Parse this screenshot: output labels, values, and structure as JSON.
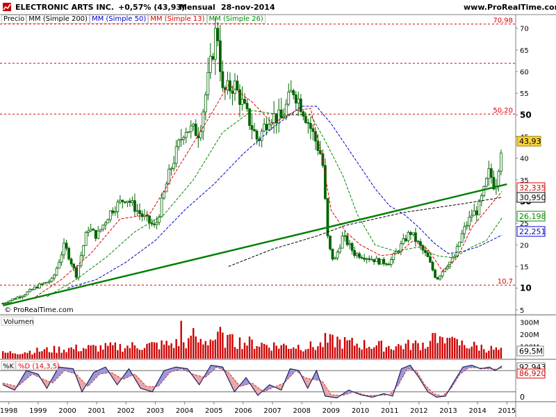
{
  "header": {
    "symbol": "ELECTRONIC ARTS INC.",
    "change": "+0,57% (43,93)",
    "period": "Mensual",
    "date": "28-nov-2014",
    "site": "www.ProRealTime.com"
  },
  "legend": {
    "price": "Precio",
    "ma200": "MM (Simple 200)",
    "ma50": "MM (Simple 50)",
    "ma13": "MM (Simple 13)",
    "ma26": "MM (Simple 26)"
  },
  "watermark": "© ProRealTime.com",
  "panels": {
    "volume_label": "Volumen",
    "stoch_k_label": "%K",
    "stoch_d_label": "%D (14,3,5)"
  },
  "colors": {
    "price": "#006400",
    "ma200": "#000000",
    "ma50": "#0000cc",
    "ma13": "#dd0000",
    "ma26": "#008800",
    "trend": "#008000",
    "volume": "#cc0000",
    "stoch_k": "#202060",
    "hline": "#dd0000",
    "price_box": "#f6d23c"
  },
  "chart_data": [
    {
      "type": "candlestick",
      "title": "ELECTRONIC ARTS INC.",
      "x_axis_ticks": [
        "1998",
        "1999",
        "2000",
        "2001",
        "2002",
        "2003",
        "2004",
        "2005",
        "2006",
        "2007",
        "2008",
        "2009",
        "2010",
        "2011",
        "2012",
        "2013",
        "2014",
        "2015"
      ],
      "y_axis_ticks": [
        5,
        10,
        15,
        20,
        25,
        30,
        35,
        40,
        45,
        50,
        55,
        60,
        65,
        70
      ],
      "ylim": [
        4,
        73
      ],
      "horizontal_levels": [
        {
          "label": "70,98",
          "value": 70.98
        },
        {
          "label": "",
          "value": 61.9
        },
        {
          "label": "50,20",
          "value": 50.2
        },
        {
          "label": "10,7",
          "value": 10.7
        }
      ],
      "last_price": "43,93",
      "ma_labels": [
        {
          "name": "MM (Simple 13)",
          "label": "32,335",
          "value": 32.335
        },
        {
          "name": "MM (Simple 200)",
          "label": "30,950",
          "value": 30.95
        },
        {
          "name": "MM (Simple 26)",
          "label": "26,198",
          "value": 26.198
        },
        {
          "name": "MM (Simple 50)",
          "label": "22,251",
          "value": 22.251
        }
      ],
      "trendline": [
        {
          "x": 1997.8,
          "y": 6.0
        },
        {
          "x": 2015.0,
          "y": 34.0
        }
      ],
      "close_path": [
        {
          "x": 1997.8,
          "y": 6.5
        },
        {
          "x": 1998.5,
          "y": 8.5
        },
        {
          "x": 1999.0,
          "y": 10.5
        },
        {
          "x": 1999.5,
          "y": 12.0
        },
        {
          "x": 1999.9,
          "y": 20.0
        },
        {
          "x": 2000.3,
          "y": 13.0
        },
        {
          "x": 2000.7,
          "y": 24.0
        },
        {
          "x": 2001.0,
          "y": 22.0
        },
        {
          "x": 2001.5,
          "y": 28.0
        },
        {
          "x": 2002.0,
          "y": 31.0
        },
        {
          "x": 2002.5,
          "y": 27.0
        },
        {
          "x": 2003.0,
          "y": 24.0
        },
        {
          "x": 2003.5,
          "y": 37.0
        },
        {
          "x": 2004.0,
          "y": 47.0
        },
        {
          "x": 2004.5,
          "y": 46.0
        },
        {
          "x": 2004.9,
          "y": 62.0
        },
        {
          "x": 2005.1,
          "y": 71.0
        },
        {
          "x": 2005.3,
          "y": 55.0
        },
        {
          "x": 2005.7,
          "y": 57.0
        },
        {
          "x": 2006.0,
          "y": 52.0
        },
        {
          "x": 2006.5,
          "y": 44.0
        },
        {
          "x": 2006.9,
          "y": 50.0
        },
        {
          "x": 2007.3,
          "y": 49.0
        },
        {
          "x": 2007.7,
          "y": 56.0
        },
        {
          "x": 2008.0,
          "y": 52.0
        },
        {
          "x": 2008.3,
          "y": 47.0
        },
        {
          "x": 2008.7,
          "y": 40.0
        },
        {
          "x": 2008.9,
          "y": 20.0
        },
        {
          "x": 2009.1,
          "y": 16.0
        },
        {
          "x": 2009.4,
          "y": 22.0
        },
        {
          "x": 2009.8,
          "y": 18.0
        },
        {
          "x": 2010.3,
          "y": 17.0
        },
        {
          "x": 2010.7,
          "y": 16.0
        },
        {
          "x": 2011.0,
          "y": 16.0
        },
        {
          "x": 2011.4,
          "y": 20.0
        },
        {
          "x": 2011.7,
          "y": 23.0
        },
        {
          "x": 2012.0,
          "y": 20.0
        },
        {
          "x": 2012.3,
          "y": 17.0
        },
        {
          "x": 2012.6,
          "y": 12.0
        },
        {
          "x": 2012.9,
          "y": 15.0
        },
        {
          "x": 2013.2,
          "y": 17.0
        },
        {
          "x": 2013.5,
          "y": 23.0
        },
        {
          "x": 2013.8,
          "y": 27.0
        },
        {
          "x": 2014.0,
          "y": 28.0
        },
        {
          "x": 2014.2,
          "y": 32.0
        },
        {
          "x": 2014.4,
          "y": 37.0
        },
        {
          "x": 2014.6,
          "y": 33.0
        },
        {
          "x": 2014.83,
          "y": 43.93
        }
      ],
      "ma13": [
        {
          "x": 1998.8,
          "y": 7.5
        },
        {
          "x": 1999.8,
          "y": 12.0
        },
        {
          "x": 2000.8,
          "y": 18.0
        },
        {
          "x": 2001.8,
          "y": 26.0
        },
        {
          "x": 2002.8,
          "y": 27.0
        },
        {
          "x": 2003.8,
          "y": 38.0
        },
        {
          "x": 2004.8,
          "y": 49.0
        },
        {
          "x": 2005.5,
          "y": 57.0
        },
        {
          "x": 2006.3,
          "y": 53.0
        },
        {
          "x": 2007.0,
          "y": 48.0
        },
        {
          "x": 2007.8,
          "y": 51.0
        },
        {
          "x": 2008.3,
          "y": 51.5
        },
        {
          "x": 2008.7,
          "y": 40.0
        },
        {
          "x": 2009.0,
          "y": 28.0
        },
        {
          "x": 2009.5,
          "y": 23.0
        },
        {
          "x": 2010.0,
          "y": 20.0
        },
        {
          "x": 2010.7,
          "y": 17.5
        },
        {
          "x": 2011.3,
          "y": 18.0
        },
        {
          "x": 2011.8,
          "y": 21.0
        },
        {
          "x": 2012.3,
          "y": 19.0
        },
        {
          "x": 2012.8,
          "y": 14.0
        },
        {
          "x": 2013.3,
          "y": 17.0
        },
        {
          "x": 2013.8,
          "y": 24.0
        },
        {
          "x": 2014.3,
          "y": 28.0
        },
        {
          "x": 2014.83,
          "y": 32.335
        }
      ],
      "ma26": [
        {
          "x": 1999.3,
          "y": 8.0
        },
        {
          "x": 2000.3,
          "y": 12.0
        },
        {
          "x": 2001.3,
          "y": 17.0
        },
        {
          "x": 2002.3,
          "y": 23.0
        },
        {
          "x": 2003.3,
          "y": 27.0
        },
        {
          "x": 2004.3,
          "y": 35.0
        },
        {
          "x": 2005.3,
          "y": 46.0
        },
        {
          "x": 2006.3,
          "y": 51.0
        },
        {
          "x": 2007.3,
          "y": 50.0
        },
        {
          "x": 2008.3,
          "y": 50.0
        },
        {
          "x": 2008.8,
          "y": 44.0
        },
        {
          "x": 2009.4,
          "y": 36.0
        },
        {
          "x": 2009.9,
          "y": 27.0
        },
        {
          "x": 2010.5,
          "y": 20.0
        },
        {
          "x": 2011.2,
          "y": 18.5
        },
        {
          "x": 2012.0,
          "y": 19.5
        },
        {
          "x": 2012.6,
          "y": 17.5
        },
        {
          "x": 2013.2,
          "y": 17.0
        },
        {
          "x": 2013.8,
          "y": 19.5
        },
        {
          "x": 2014.3,
          "y": 21.0
        },
        {
          "x": 2014.83,
          "y": 26.198
        }
      ],
      "ma50": [
        {
          "x": 2000.0,
          "y": 10.0
        },
        {
          "x": 2001.0,
          "y": 12.0
        },
        {
          "x": 2002.0,
          "y": 16.0
        },
        {
          "x": 2003.0,
          "y": 21.0
        },
        {
          "x": 2004.0,
          "y": 28.0
        },
        {
          "x": 2005.0,
          "y": 34.0
        },
        {
          "x": 2006.0,
          "y": 41.0
        },
        {
          "x": 2007.0,
          "y": 47.0
        },
        {
          "x": 2008.0,
          "y": 52.0
        },
        {
          "x": 2008.5,
          "y": 52.0
        },
        {
          "x": 2009.0,
          "y": 48.0
        },
        {
          "x": 2009.5,
          "y": 43.0
        },
        {
          "x": 2010.0,
          "y": 38.0
        },
        {
          "x": 2010.5,
          "y": 33.0
        },
        {
          "x": 2011.0,
          "y": 29.0
        },
        {
          "x": 2011.5,
          "y": 27.0
        },
        {
          "x": 2012.0,
          "y": 24.0
        },
        {
          "x": 2012.5,
          "y": 20.5
        },
        {
          "x": 2013.0,
          "y": 18.0
        },
        {
          "x": 2013.5,
          "y": 18.5
        },
        {
          "x": 2014.0,
          "y": 19.5
        },
        {
          "x": 2014.83,
          "y": 22.251
        }
      ],
      "ma200": [
        {
          "x": 2005.5,
          "y": 15.0
        },
        {
          "x": 2007.0,
          "y": 19.0
        },
        {
          "x": 2008.5,
          "y": 22.0
        },
        {
          "x": 2009.5,
          "y": 24.5
        },
        {
          "x": 2010.5,
          "y": 26.0
        },
        {
          "x": 2011.5,
          "y": 27.5
        },
        {
          "x": 2012.5,
          "y": 28.5
        },
        {
          "x": 2013.5,
          "y": 29.5
        },
        {
          "x": 2014.83,
          "y": 30.95
        }
      ]
    },
    {
      "type": "bar",
      "title": "Volumen",
      "y_axis_ticks": [
        "300M",
        "200M",
        "100M"
      ],
      "last_value": "69,5M",
      "x_range": [
        1997.8,
        2014.83
      ],
      "profile": [
        {
          "x": 1997.8,
          "y": 50
        },
        {
          "x": 2000.0,
          "y": 90
        },
        {
          "x": 2002.0,
          "y": 110
        },
        {
          "x": 2003.5,
          "y": 130
        },
        {
          "x": 2004.5,
          "y": 160
        },
        {
          "x": 2005.0,
          "y": 180
        },
        {
          "x": 2007.0,
          "y": 120
        },
        {
          "x": 2008.5,
          "y": 110
        },
        {
          "x": 2009.0,
          "y": 160
        },
        {
          "x": 2010.0,
          "y": 130
        },
        {
          "x": 2011.0,
          "y": 110
        },
        {
          "x": 2012.0,
          "y": 130
        },
        {
          "x": 2013.0,
          "y": 150
        },
        {
          "x": 2014.0,
          "y": 110
        },
        {
          "x": 2014.83,
          "y": 70
        }
      ],
      "spikes": [
        {
          "x": 2003.9,
          "y": 310
        },
        {
          "x": 2004.3,
          "y": 250
        },
        {
          "x": 2005.2,
          "y": 260
        },
        {
          "x": 2005.6,
          "y": 200
        },
        {
          "x": 2008.8,
          "y": 210
        },
        {
          "x": 2009.2,
          "y": 180
        },
        {
          "x": 2012.5,
          "y": 210
        },
        {
          "x": 2013.0,
          "y": 170
        }
      ]
    },
    {
      "type": "line",
      "title": "%K %D (14,3,5)",
      "y_axis_ticks": [
        0
      ],
      "ylim": [
        0,
        100
      ],
      "last_k": "92,943",
      "last_d": "86,920",
      "k_points": [
        {
          "x": 1997.8,
          "y": 40
        },
        {
          "x": 1998.2,
          "y": 25
        },
        {
          "x": 1998.6,
          "y": 80
        },
        {
          "x": 1999.0,
          "y": 70
        },
        {
          "x": 1999.3,
          "y": 30
        },
        {
          "x": 1999.7,
          "y": 90
        },
        {
          "x": 2000.2,
          "y": 85
        },
        {
          "x": 2000.5,
          "y": 20
        },
        {
          "x": 2000.9,
          "y": 75
        },
        {
          "x": 2001.3,
          "y": 90
        },
        {
          "x": 2001.7,
          "y": 40
        },
        {
          "x": 2002.1,
          "y": 85
        },
        {
          "x": 2002.5,
          "y": 30
        },
        {
          "x": 2002.9,
          "y": 20
        },
        {
          "x": 2003.3,
          "y": 80
        },
        {
          "x": 2003.7,
          "y": 90
        },
        {
          "x": 2004.1,
          "y": 85
        },
        {
          "x": 2004.5,
          "y": 40
        },
        {
          "x": 2004.9,
          "y": 95
        },
        {
          "x": 2005.3,
          "y": 90
        },
        {
          "x": 2005.7,
          "y": 20
        },
        {
          "x": 2006.1,
          "y": 60
        },
        {
          "x": 2006.5,
          "y": 10
        },
        {
          "x": 2006.9,
          "y": 40
        },
        {
          "x": 2007.3,
          "y": 25
        },
        {
          "x": 2007.6,
          "y": 85
        },
        {
          "x": 2007.9,
          "y": 80
        },
        {
          "x": 2008.2,
          "y": 30
        },
        {
          "x": 2008.5,
          "y": 80
        },
        {
          "x": 2008.8,
          "y": 8
        },
        {
          "x": 2009.2,
          "y": 3
        },
        {
          "x": 2009.6,
          "y": 25
        },
        {
          "x": 2010.0,
          "y": 12
        },
        {
          "x": 2010.4,
          "y": 5
        },
        {
          "x": 2010.8,
          "y": 15
        },
        {
          "x": 2011.1,
          "y": 8
        },
        {
          "x": 2011.4,
          "y": 85
        },
        {
          "x": 2011.7,
          "y": 95
        },
        {
          "x": 2012.0,
          "y": 60
        },
        {
          "x": 2012.3,
          "y": 20
        },
        {
          "x": 2012.6,
          "y": 5
        },
        {
          "x": 2012.9,
          "y": 8
        },
        {
          "x": 2013.2,
          "y": 50
        },
        {
          "x": 2013.5,
          "y": 90
        },
        {
          "x": 2013.8,
          "y": 95
        },
        {
          "x": 2014.1,
          "y": 85
        },
        {
          "x": 2014.4,
          "y": 90
        },
        {
          "x": 2014.6,
          "y": 80
        },
        {
          "x": 2014.83,
          "y": 92.9
        }
      ],
      "d_points": [
        {
          "x": 1997.8,
          "y": 45
        },
        {
          "x": 1998.3,
          "y": 35
        },
        {
          "x": 1998.8,
          "y": 70
        },
        {
          "x": 1999.2,
          "y": 55
        },
        {
          "x": 1999.5,
          "y": 45
        },
        {
          "x": 1999.9,
          "y": 80
        },
        {
          "x": 2000.3,
          "y": 70
        },
        {
          "x": 2000.7,
          "y": 35
        },
        {
          "x": 2001.1,
          "y": 70
        },
        {
          "x": 2001.5,
          "y": 75
        },
        {
          "x": 2001.9,
          "y": 55
        },
        {
          "x": 2002.3,
          "y": 70
        },
        {
          "x": 2002.7,
          "y": 35
        },
        {
          "x": 2003.1,
          "y": 35
        },
        {
          "x": 2003.5,
          "y": 75
        },
        {
          "x": 2003.9,
          "y": 85
        },
        {
          "x": 2004.3,
          "y": 70
        },
        {
          "x": 2004.7,
          "y": 60
        },
        {
          "x": 2005.1,
          "y": 90
        },
        {
          "x": 2005.5,
          "y": 75
        },
        {
          "x": 2005.9,
          "y": 35
        },
        {
          "x": 2006.3,
          "y": 45
        },
        {
          "x": 2006.7,
          "y": 20
        },
        {
          "x": 2007.1,
          "y": 35
        },
        {
          "x": 2007.4,
          "y": 45
        },
        {
          "x": 2007.8,
          "y": 80
        },
        {
          "x": 2008.1,
          "y": 60
        },
        {
          "x": 2008.4,
          "y": 55
        },
        {
          "x": 2008.7,
          "y": 50
        },
        {
          "x": 2009.0,
          "y": 12
        },
        {
          "x": 2009.4,
          "y": 10
        },
        {
          "x": 2009.8,
          "y": 20
        },
        {
          "x": 2010.2,
          "y": 10
        },
        {
          "x": 2010.6,
          "y": 10
        },
        {
          "x": 2011.0,
          "y": 12
        },
        {
          "x": 2011.3,
          "y": 40
        },
        {
          "x": 2011.6,
          "y": 85
        },
        {
          "x": 2011.9,
          "y": 80
        },
        {
          "x": 2012.2,
          "y": 40
        },
        {
          "x": 2012.5,
          "y": 15
        },
        {
          "x": 2012.8,
          "y": 8
        },
        {
          "x": 2013.1,
          "y": 30
        },
        {
          "x": 2013.4,
          "y": 70
        },
        {
          "x": 2013.7,
          "y": 88
        },
        {
          "x": 2014.0,
          "y": 88
        },
        {
          "x": 2014.3,
          "y": 85
        },
        {
          "x": 2014.6,
          "y": 84
        },
        {
          "x": 2014.83,
          "y": 86.9
        }
      ]
    }
  ]
}
